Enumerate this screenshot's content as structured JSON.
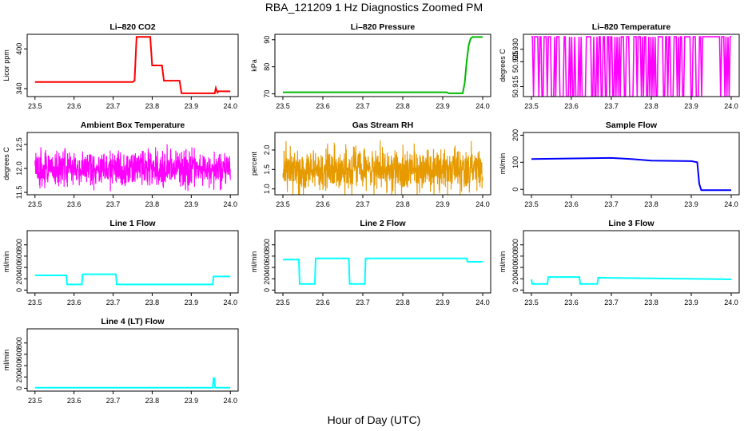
{
  "figure": {
    "title": "RBA_121209  1 Hz Diagnostics Zoomed PM",
    "xlabel": "Hour of Day (UTC)"
  },
  "chart_data": [
    {
      "type": "line",
      "title": "Li–820 CO2",
      "ylabel": "Licor ppm",
      "color": "#ff0000",
      "xlim": [
        23.48,
        24.02
      ],
      "ylim": [
        328,
        422
      ],
      "xticks": [
        23.5,
        23.6,
        23.7,
        23.8,
        23.9,
        24.0
      ],
      "xticklabels": [
        "23.5",
        "23.6",
        "23.7",
        "23.8",
        "23.9",
        "24.0"
      ],
      "yticks": [
        340,
        400
      ],
      "yticklabels": [
        "340",
        "400"
      ],
      "x": [
        23.5,
        23.75,
        23.755,
        23.76,
        23.795,
        23.8,
        23.825,
        23.83,
        23.87,
        23.875,
        23.96,
        23.963,
        23.967,
        23.97,
        24.0
      ],
      "y": [
        350,
        350,
        352,
        418,
        418,
        375,
        375,
        352,
        352,
        333,
        333,
        341,
        334,
        336,
        336
      ]
    },
    {
      "type": "line",
      "title": "Li–820 Pressure",
      "ylabel": "kPa",
      "color": "#00bb00",
      "xlim": [
        23.48,
        24.02
      ],
      "ylim": [
        69,
        92
      ],
      "xticks": [
        23.5,
        23.6,
        23.7,
        23.8,
        23.9,
        24.0
      ],
      "xticklabels": [
        "23.5",
        "23.6",
        "23.7",
        "23.8",
        "23.9",
        "24.0"
      ],
      "yticks": [
        70,
        80,
        90
      ],
      "yticklabels": [
        "70",
        "80",
        "90"
      ],
      "x": [
        23.5,
        23.91,
        23.915,
        23.95,
        23.955,
        23.96,
        23.965,
        23.97,
        23.975,
        24.0
      ],
      "y": [
        70.6,
        70.6,
        70.2,
        70.2,
        74,
        82,
        88,
        90.5,
        91,
        91
      ]
    },
    {
      "type": "line",
      "title": "Li–820 Temperature",
      "ylabel": "degrees C",
      "color": "#ff00ff",
      "xlim": [
        23.48,
        24.02
      ],
      "ylim": [
        50.911,
        50.936
      ],
      "xticks": [
        23.5,
        23.6,
        23.7,
        23.8,
        23.9,
        24.0
      ],
      "xticklabels": [
        "23.5",
        "23.6",
        "23.7",
        "23.8",
        "23.9",
        "24.0"
      ],
      "yticks": [
        50.915,
        50.925,
        50.93
      ],
      "yticklabels": [
        "50.915",
        "50.925",
        "50.930"
      ],
      "pattern": "binary",
      "low": 50.911,
      "high": 50.935
    },
    {
      "type": "line",
      "title": "Ambient Box Temperature",
      "ylabel": "degrees C",
      "color": "#ff00ff",
      "xlim": [
        23.48,
        24.02
      ],
      "ylim": [
        11.45,
        12.75
      ],
      "xticks": [
        23.5,
        23.6,
        23.7,
        23.8,
        23.9,
        24.0
      ],
      "xticklabels": [
        "23.5",
        "23.6",
        "23.7",
        "23.8",
        "23.9",
        "24.0"
      ],
      "yticks": [
        11.5,
        12.0,
        12.5
      ],
      "yticklabels": [
        "11.5",
        "12.0",
        "12.5"
      ],
      "pattern": "noise",
      "base": 12.0,
      "amplitude": 0.55
    },
    {
      "type": "line",
      "title": "Gas Stream RH",
      "ylabel": "percent",
      "color": "#e69a00",
      "xlim": [
        23.48,
        24.02
      ],
      "ylim": [
        0.85,
        2.45
      ],
      "xticks": [
        23.5,
        23.6,
        23.7,
        23.8,
        23.9,
        24.0
      ],
      "xticklabels": [
        "23.5",
        "23.6",
        "23.7",
        "23.8",
        "23.9",
        "24.0"
      ],
      "yticks": [
        1.0,
        1.5,
        2.0
      ],
      "yticklabels": [
        "1.0",
        "1.5",
        "2.0"
      ],
      "pattern": "noise",
      "base": 1.5,
      "amplitude": 0.85
    },
    {
      "type": "line",
      "title": "Sample Flow",
      "ylabel": "ml/min",
      "color": "#0000ff",
      "xlim": [
        23.48,
        24.02
      ],
      "ylim": [
        -20,
        210
      ],
      "xticks": [
        23.5,
        23.6,
        23.7,
        23.8,
        23.9,
        24.0
      ],
      "xticklabels": [
        "23.5",
        "23.6",
        "23.7",
        "23.8",
        "23.9",
        "24.0"
      ],
      "yticks": [
        0,
        100,
        200
      ],
      "yticklabels": [
        "0",
        "100",
        "200"
      ],
      "x": [
        23.5,
        23.7,
        23.75,
        23.8,
        23.9,
        23.915,
        23.92,
        23.925,
        24.0
      ],
      "y": [
        112,
        116,
        112,
        106,
        104,
        100,
        20,
        -3,
        -3
      ]
    },
    {
      "type": "line",
      "title": "Line 1 Flow",
      "ylabel": "ml/min",
      "color": "#00ffff",
      "xlim": [
        23.48,
        24.02
      ],
      "ylim": [
        -50,
        1050
      ],
      "xticks": [
        23.5,
        23.6,
        23.7,
        23.8,
        23.9,
        24.0
      ],
      "xticklabels": [
        "23.5",
        "23.6",
        "23.7",
        "23.8",
        "23.9",
        "24.0"
      ],
      "yticks": [
        0,
        200,
        400,
        600,
        800
      ],
      "yticklabels": [
        "0",
        "200",
        "400",
        "600",
        "800"
      ],
      "x": [
        23.5,
        23.58,
        23.582,
        23.62,
        23.622,
        23.707,
        23.709,
        23.955,
        23.957,
        24.0
      ],
      "y": [
        260,
        260,
        100,
        100,
        280,
        280,
        100,
        100,
        240,
        240
      ]
    },
    {
      "type": "line",
      "title": "Line 2 Flow",
      "ylabel": "ml/min",
      "color": "#00ffff",
      "xlim": [
        23.48,
        24.02
      ],
      "ylim": [
        -50,
        1050
      ],
      "xticks": [
        23.5,
        23.6,
        23.7,
        23.8,
        23.9,
        24.0
      ],
      "xticklabels": [
        "23.5",
        "23.6",
        "23.7",
        "23.8",
        "23.9",
        "24.0"
      ],
      "yticks": [
        0,
        200,
        400,
        600,
        800
      ],
      "yticklabels": [
        "0",
        "200",
        "400",
        "600",
        "800"
      ],
      "x": [
        23.5,
        23.54,
        23.542,
        23.58,
        23.582,
        23.665,
        23.667,
        23.705,
        23.707,
        23.96,
        23.962,
        24.0
      ],
      "y": [
        540,
        540,
        110,
        110,
        560,
        560,
        110,
        110,
        560,
        560,
        500,
        500
      ]
    },
    {
      "type": "line",
      "title": "Line 3 Flow",
      "ylabel": "ml/min",
      "color": "#00ffff",
      "xlim": [
        23.48,
        24.02
      ],
      "ylim": [
        -50,
        1050
      ],
      "xticks": [
        23.5,
        23.6,
        23.7,
        23.8,
        23.9,
        24.0
      ],
      "xticklabels": [
        "23.5",
        "23.6",
        "23.7",
        "23.8",
        "23.9",
        "24.0"
      ],
      "yticks": [
        0,
        200,
        400,
        600,
        800
      ],
      "yticklabels": [
        "0",
        "200",
        "400",
        "600",
        "800"
      ],
      "x": [
        23.5,
        23.502,
        23.54,
        23.542,
        23.62,
        23.622,
        23.665,
        23.667,
        24.0
      ],
      "y": [
        190,
        110,
        110,
        230,
        230,
        110,
        110,
        220,
        190
      ]
    },
    {
      "type": "line",
      "title": "Line 4 (LT) Flow",
      "ylabel": "ml/min",
      "color": "#00ffff",
      "xlim": [
        23.48,
        24.02
      ],
      "ylim": [
        -50,
        1050
      ],
      "xticks": [
        23.5,
        23.6,
        23.7,
        23.8,
        23.9,
        24.0
      ],
      "xticklabels": [
        "23.5",
        "23.6",
        "23.7",
        "23.8",
        "23.9",
        "24.0"
      ],
      "yticks": [
        0,
        200,
        400,
        600,
        800
      ],
      "yticklabels": [
        "0",
        "200",
        "400",
        "600",
        "800"
      ],
      "x": [
        23.5,
        23.955,
        23.957,
        23.959,
        23.961,
        24.0
      ],
      "y": [
        10,
        10,
        180,
        180,
        10,
        10
      ]
    }
  ]
}
